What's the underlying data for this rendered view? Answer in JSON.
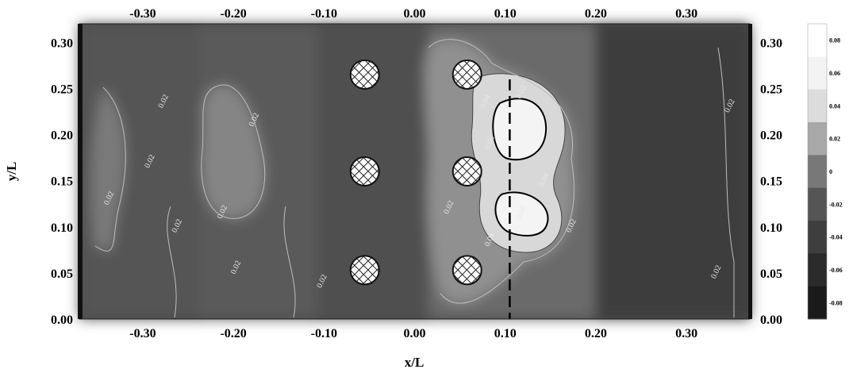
{
  "chart_data": {
    "type": "heatmap",
    "title": "",
    "xlabel": "x/L",
    "ylabel": "y/L",
    "xlim": [
      -0.37,
      0.37
    ],
    "ylim": [
      0.0,
      0.32
    ],
    "x_ticks": [
      "-0.30",
      "-0.20",
      "-0.10",
      "0.00",
      "0.10",
      "0.20",
      "0.30"
    ],
    "y_ticks": [
      "0.00",
      "0.05",
      "0.10",
      "0.15",
      "0.20",
      "0.25",
      "0.30"
    ],
    "colorbar_labels": [
      "0.08",
      "0.06",
      "0.04",
      "0.02",
      "0",
      "-0.02",
      "-0.04",
      "-0.06",
      "-0.08"
    ],
    "colorbar_levels": [
      0.08,
      0.06,
      0.04,
      0.02,
      0,
      -0.02,
      -0.04,
      -0.06,
      -0.08
    ],
    "grayscale": [
      "#ffffff",
      "#f3f3f3",
      "#dcdcdc",
      "#a8a8a8",
      "#787878",
      "#555555",
      "#3e3e3e",
      "#2a2a2a",
      "#1a1a1a"
    ],
    "cylinders": [
      {
        "x": -0.055,
        "y": 0.265
      },
      {
        "x": -0.055,
        "y": 0.16
      },
      {
        "x": -0.055,
        "y": 0.053
      },
      {
        "x": 0.058,
        "y": 0.265
      },
      {
        "x": 0.058,
        "y": 0.16
      },
      {
        "x": 0.058,
        "y": 0.053
      }
    ],
    "dashed_line_x": 0.105,
    "contour_labels": [
      {
        "text": "0.02",
        "x": -0.335,
        "y": 0.13
      },
      {
        "text": "0.02",
        "x": -0.29,
        "y": 0.17
      },
      {
        "text": "0.02",
        "x": -0.275,
        "y": 0.235
      },
      {
        "text": "0.02",
        "x": -0.26,
        "y": 0.1
      },
      {
        "text": "0.02",
        "x": -0.175,
        "y": 0.215
      },
      {
        "text": "0.02",
        "x": -0.21,
        "y": 0.115
      },
      {
        "text": "0.02",
        "x": -0.195,
        "y": 0.055
      },
      {
        "text": "0.02",
        "x": -0.1,
        "y": 0.04
      },
      {
        "text": "0.02",
        "x": 0.12,
        "y": 0.245
      },
      {
        "text": "0.04",
        "x": 0.08,
        "y": 0.235
      },
      {
        "text": "0.06",
        "x": 0.085,
        "y": 0.19
      },
      {
        "text": "0.04",
        "x": 0.145,
        "y": 0.15
      },
      {
        "text": "0.06",
        "x": 0.12,
        "y": 0.115
      },
      {
        "text": "0.04",
        "x": 0.085,
        "y": 0.085
      },
      {
        "text": "0.02",
        "x": 0.04,
        "y": 0.12
      },
      {
        "text": "0.02",
        "x": 0.175,
        "y": 0.1
      },
      {
        "text": "0.02",
        "x": 0.335,
        "y": 0.05
      },
      {
        "text": "0.02",
        "x": 0.35,
        "y": 0.23
      }
    ]
  }
}
